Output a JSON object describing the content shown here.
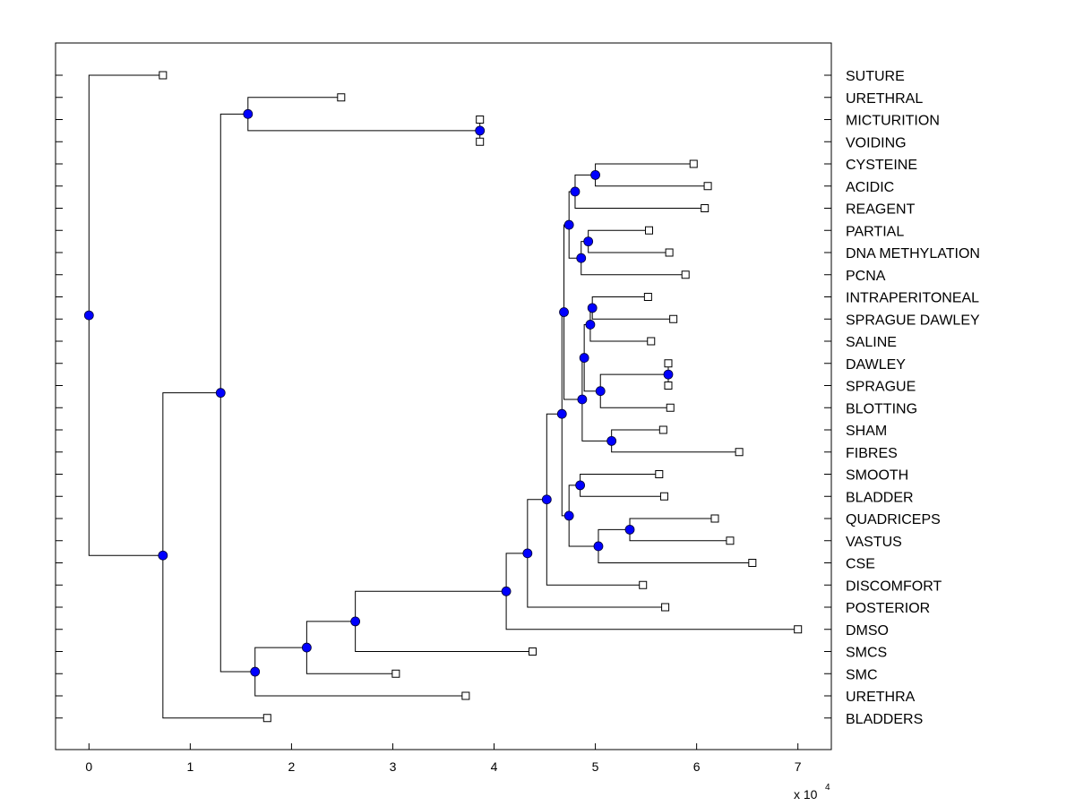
{
  "chart_data": {
    "type": "dendrogram",
    "title": "",
    "xlabel": "",
    "ylabel": "",
    "x_multiplier": {
      "base": "x 10",
      "exponent": "4"
    },
    "x_ticks": [
      {
        "value": 0,
        "label": "0"
      },
      {
        "value": 1,
        "label": "1"
      },
      {
        "value": 2,
        "label": "2"
      },
      {
        "value": 3,
        "label": "3"
      },
      {
        "value": 4,
        "label": "4"
      },
      {
        "value": 5,
        "label": "5"
      },
      {
        "value": 6,
        "label": "6"
      },
      {
        "value": 7,
        "label": "7"
      }
    ],
    "xlim": [
      -0.33,
      7.33
    ],
    "colors": {
      "node": "#0000ff",
      "line": "#000000",
      "leaf_marker_fill": "#ffffff"
    },
    "leaves": [
      {
        "label": "SUTURE",
        "x": 0.73
      },
      {
        "label": "URETHRAL",
        "x": 2.49
      },
      {
        "label": "MICTURITION",
        "x": 3.86
      },
      {
        "label": "VOIDING",
        "x": 3.86
      },
      {
        "label": "CYSTEINE",
        "x": 5.97
      },
      {
        "label": "ACIDIC",
        "x": 6.11
      },
      {
        "label": "REAGENT",
        "x": 6.08
      },
      {
        "label": "PARTIAL",
        "x": 5.53
      },
      {
        "label": "DNA METHYLATION",
        "x": 5.73
      },
      {
        "label": "PCNA",
        "x": 5.89
      },
      {
        "label": "INTRAPERITONEAL",
        "x": 5.52
      },
      {
        "label": "SPRAGUE DAWLEY",
        "x": 5.77
      },
      {
        "label": "SALINE",
        "x": 5.55
      },
      {
        "label": "DAWLEY",
        "x": 5.72
      },
      {
        "label": "SPRAGUE",
        "x": 5.72
      },
      {
        "label": "BLOTTING",
        "x": 5.74
      },
      {
        "label": "SHAM",
        "x": 5.67
      },
      {
        "label": "FIBRES",
        "x": 6.42
      },
      {
        "label": "SMOOTH",
        "x": 5.63
      },
      {
        "label": "BLADDER",
        "x": 5.68
      },
      {
        "label": "QUADRICEPS",
        "x": 6.18
      },
      {
        "label": "VASTUS",
        "x": 6.33
      },
      {
        "label": "CSE",
        "x": 6.55
      },
      {
        "label": "DISCOMFORT",
        "x": 5.47
      },
      {
        "label": "POSTERIOR",
        "x": 5.69
      },
      {
        "label": "DMSO",
        "x": 7.0
      },
      {
        "label": "SMCS",
        "x": 4.38
      },
      {
        "label": "SMC",
        "x": 3.03
      },
      {
        "label": "URETHRA",
        "x": 3.72
      },
      {
        "label": "BLADDERS",
        "x": 1.76
      }
    ],
    "merges": [
      {
        "id": "n1",
        "x": 3.86,
        "children": [
          "L2",
          "L3"
        ]
      },
      {
        "id": "n2",
        "x": 1.57,
        "children": [
          "L1",
          "n1"
        ]
      },
      {
        "id": "n3",
        "x": 5.0,
        "children": [
          "L4",
          "L5"
        ]
      },
      {
        "id": "n4",
        "x": 4.8,
        "children": [
          "n3",
          "L6"
        ]
      },
      {
        "id": "n5",
        "x": 4.93,
        "children": [
          "L7",
          "L8"
        ]
      },
      {
        "id": "n6",
        "x": 4.86,
        "children": [
          "n5",
          "L9"
        ]
      },
      {
        "id": "n7",
        "x": 4.74,
        "children": [
          "n4",
          "n6"
        ]
      },
      {
        "id": "n8",
        "x": 4.97,
        "children": [
          "L10",
          "L11"
        ]
      },
      {
        "id": "n9",
        "x": 4.95,
        "children": [
          "n8",
          "L12"
        ]
      },
      {
        "id": "n10",
        "x": 5.72,
        "children": [
          "L13",
          "L14"
        ]
      },
      {
        "id": "n11",
        "x": 5.05,
        "children": [
          "n10",
          "L15"
        ]
      },
      {
        "id": "n12",
        "x": 4.89,
        "children": [
          "n9",
          "n11"
        ]
      },
      {
        "id": "n13",
        "x": 5.16,
        "children": [
          "L16",
          "L17"
        ]
      },
      {
        "id": "n14",
        "x": 4.87,
        "children": [
          "n12",
          "n13"
        ]
      },
      {
        "id": "n15",
        "x": 4.69,
        "children": [
          "n7",
          "n14"
        ]
      },
      {
        "id": "n16",
        "x": 4.85,
        "children": [
          "L18",
          "L19"
        ]
      },
      {
        "id": "n17",
        "x": 5.34,
        "children": [
          "L20",
          "L21"
        ]
      },
      {
        "id": "n18",
        "x": 5.03,
        "children": [
          "n17",
          "L22"
        ]
      },
      {
        "id": "n19",
        "x": 4.74,
        "children": [
          "n16",
          "n18"
        ]
      },
      {
        "id": "n20",
        "x": 4.67,
        "children": [
          "n15",
          "n19"
        ]
      },
      {
        "id": "n21",
        "x": 4.52,
        "children": [
          "n20",
          "L23"
        ]
      },
      {
        "id": "n22",
        "x": 4.33,
        "children": [
          "n21",
          "L24"
        ]
      },
      {
        "id": "n23",
        "x": 4.12,
        "children": [
          "n22",
          "L25"
        ]
      },
      {
        "id": "n24",
        "x": 2.63,
        "children": [
          "n23",
          "L26"
        ]
      },
      {
        "id": "n25",
        "x": 2.15,
        "children": [
          "n24",
          "L27"
        ]
      },
      {
        "id": "n26",
        "x": 1.64,
        "children": [
          "n25",
          "L28"
        ]
      },
      {
        "id": "n27",
        "x": 1.3,
        "children": [
          "n2",
          "n26"
        ]
      },
      {
        "id": "n28",
        "x": 0.73,
        "children": [
          "n27",
          "L29"
        ]
      },
      {
        "id": "n29",
        "x": 0.0,
        "children": [
          "L0",
          "n28"
        ]
      }
    ]
  }
}
